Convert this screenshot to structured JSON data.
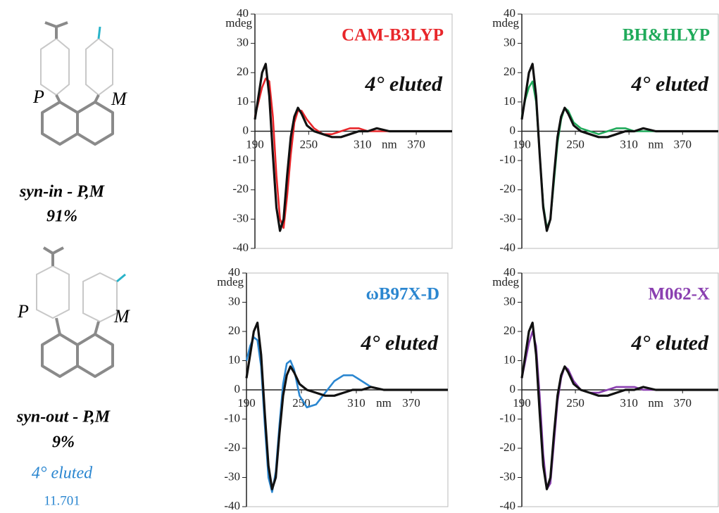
{
  "molecules": [
    {
      "left": "P",
      "right": "M",
      "name": "syn-in - P,M",
      "percent": "91%"
    },
    {
      "left": "P",
      "right": "M",
      "name": "syn-out - P,M",
      "percent": "9%"
    }
  ],
  "peak": "4° eluted",
  "retention": "11.701",
  "chart_data": [
    {
      "type": "line",
      "title": "CAM-B3LYP",
      "annotation": "4° eluted",
      "ylabel": "mdeg",
      "xlabel": "nm",
      "x": [
        190,
        194,
        198,
        202,
        206,
        210,
        214,
        218,
        222,
        226,
        230,
        234,
        238,
        242,
        248,
        256,
        266,
        276,
        286,
        296,
        306,
        316,
        326,
        340,
        360,
        380,
        410
      ],
      "series": [
        {
          "color": "#e8262a",
          "values": [
            5,
            10,
            15,
            18,
            17,
            5,
            -15,
            -30,
            -33,
            -22,
            -8,
            3,
            7,
            7,
            4,
            1,
            -1,
            -1,
            0,
            1,
            1,
            0,
            0,
            0,
            0,
            0,
            0
          ]
        },
        {
          "color": "#111111",
          "values": [
            4,
            12,
            20,
            23,
            12,
            -8,
            -26,
            -34,
            -30,
            -15,
            -2,
            5,
            8,
            6,
            2,
            0,
            -1,
            -2,
            -2,
            -1,
            0,
            0,
            1,
            0,
            0,
            0,
            0
          ]
        }
      ],
      "xlim": [
        190,
        410
      ],
      "xticks": [
        190,
        250,
        310,
        370
      ],
      "ylim": [
        -40,
        40
      ],
      "yticks": [
        -40,
        -30,
        -20,
        -10,
        0,
        10,
        20,
        30,
        40
      ]
    },
    {
      "type": "line",
      "title": "BH&HLYP",
      "annotation": "4° eluted",
      "ylabel": "mdeg",
      "xlabel": "nm",
      "x": [
        190,
        194,
        198,
        202,
        206,
        210,
        214,
        218,
        222,
        226,
        230,
        234,
        238,
        242,
        248,
        256,
        266,
        276,
        286,
        296,
        306,
        316,
        326,
        340,
        360,
        380,
        410
      ],
      "series": [
        {
          "color": "#1faa5a",
          "values": [
            5,
            11,
            15,
            17,
            10,
            -8,
            -25,
            -33,
            -30,
            -17,
            -4,
            4,
            8,
            7,
            3,
            1,
            0,
            -1,
            0,
            1,
            1,
            0,
            0,
            0,
            0,
            0,
            0
          ]
        },
        {
          "color": "#111111",
          "values": [
            4,
            12,
            20,
            23,
            12,
            -8,
            -26,
            -34,
            -30,
            -15,
            -2,
            5,
            8,
            6,
            2,
            0,
            -1,
            -2,
            -2,
            -1,
            0,
            0,
            1,
            0,
            0,
            0,
            0
          ]
        }
      ],
      "xlim": [
        190,
        410
      ],
      "xticks": [
        190,
        250,
        310,
        370
      ],
      "ylim": [
        -40,
        40
      ],
      "yticks": [
        -40,
        -30,
        -20,
        -10,
        0,
        10,
        20,
        30,
        40
      ]
    },
    {
      "type": "line",
      "title": "ωB97X-D",
      "annotation": "4° eluted",
      "ylabel": "mdeg",
      "xlabel": "nm",
      "x": [
        190,
        194,
        198,
        202,
        206,
        210,
        214,
        218,
        222,
        226,
        230,
        234,
        238,
        242,
        248,
        256,
        266,
        276,
        286,
        296,
        306,
        316,
        326,
        340,
        360,
        380,
        410
      ],
      "series": [
        {
          "color": "#2a86d0",
          "values": [
            10,
            15,
            18,
            17,
            8,
            -12,
            -30,
            -35,
            -28,
            -12,
            2,
            9,
            10,
            7,
            -2,
            -6,
            -5,
            -1,
            3,
            5,
            5,
            3,
            1,
            0,
            0,
            0,
            0
          ]
        },
        {
          "color": "#111111",
          "values": [
            4,
            12,
            20,
            23,
            12,
            -8,
            -26,
            -34,
            -30,
            -15,
            -2,
            5,
            8,
            6,
            2,
            0,
            -1,
            -2,
            -2,
            -1,
            0,
            0,
            1,
            0,
            0,
            0,
            0
          ]
        }
      ],
      "xlim": [
        190,
        410
      ],
      "xticks": [
        190,
        250,
        310,
        370
      ],
      "ylim": [
        -40,
        40
      ],
      "yticks": [
        -40,
        -30,
        -20,
        -10,
        0,
        10,
        20,
        30,
        40
      ]
    },
    {
      "type": "line",
      "title": "M062-X",
      "annotation": "4° eluted",
      "ylabel": "mdeg",
      "xlabel": "nm",
      "x": [
        190,
        194,
        198,
        202,
        206,
        210,
        214,
        218,
        222,
        226,
        230,
        234,
        238,
        242,
        248,
        256,
        266,
        276,
        286,
        296,
        306,
        316,
        326,
        340,
        360,
        380,
        410
      ],
      "series": [
        {
          "color": "#8a3fb0",
          "values": [
            4,
            10,
            16,
            20,
            15,
            -2,
            -22,
            -34,
            -32,
            -18,
            -4,
            4,
            8,
            7,
            3,
            0,
            -1,
            -1,
            0,
            1,
            1,
            1,
            0,
            0,
            0,
            0,
            0
          ]
        },
        {
          "color": "#111111",
          "values": [
            4,
            12,
            20,
            23,
            12,
            -8,
            -26,
            -34,
            -30,
            -15,
            -2,
            5,
            8,
            6,
            2,
            0,
            -1,
            -2,
            -2,
            -1,
            0,
            0,
            1,
            0,
            0,
            0,
            0
          ]
        }
      ],
      "xlim": [
        190,
        410
      ],
      "xticks": [
        190,
        250,
        310,
        370
      ],
      "ylim": [
        -40,
        40
      ],
      "yticks": [
        -40,
        -30,
        -20,
        -10,
        0,
        10,
        20,
        30,
        40
      ]
    }
  ]
}
